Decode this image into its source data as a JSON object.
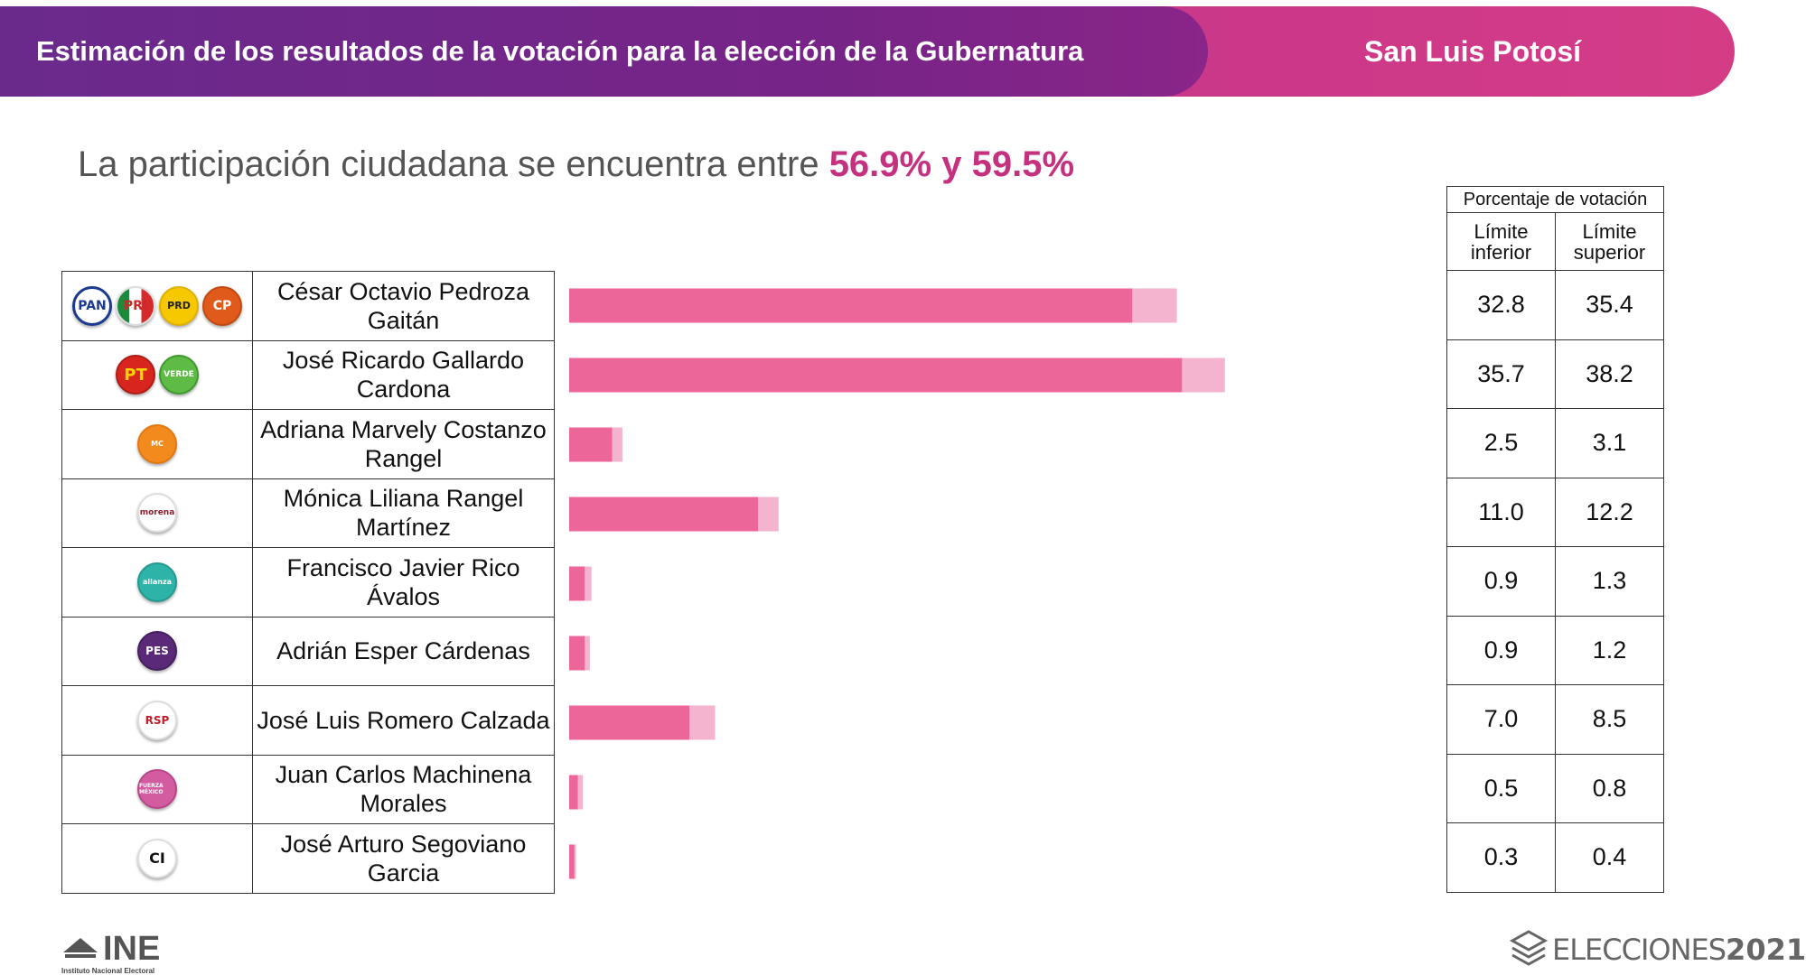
{
  "header": {
    "title": "Estimación de los resultados de la votación para la elección de la Gubernatura",
    "state": "San Luis Potosí"
  },
  "participation": {
    "text": "La participación ciudadana se encuentra entre ",
    "low": "56.9%",
    "conj": " y ",
    "high": "59.5%"
  },
  "table_header": {
    "title": "Porcentaje de votación",
    "lower": "Límite inferior",
    "upper": "Límite superior"
  },
  "candidates": [
    {
      "name": "César Octavio Pedroza Gaitán",
      "parties": [
        "PAN",
        "PRI",
        "PRD",
        "CP"
      ],
      "lower": "32.8",
      "upper": "35.4"
    },
    {
      "name": "José Ricardo Gallardo Cardona",
      "parties": [
        "PT",
        "VERDE"
      ],
      "lower": "35.7",
      "upper": "38.2"
    },
    {
      "name": "Adriana Marvely Costanzo Rangel",
      "parties": [
        "MC"
      ],
      "lower": "2.5",
      "upper": "3.1"
    },
    {
      "name": "Mónica Liliana Rangel Martínez",
      "parties": [
        "morena"
      ],
      "lower": "11.0",
      "upper": "12.2"
    },
    {
      "name": "Francisco Javier Rico Ávalos",
      "parties": [
        "alianza"
      ],
      "lower": "0.9",
      "upper": "1.3"
    },
    {
      "name": "Adrián Esper Cárdenas",
      "parties": [
        "PES"
      ],
      "lower": "0.9",
      "upper": "1.2"
    },
    {
      "name": "José Luis Romero Calzada",
      "parties": [
        "RSP"
      ],
      "lower": "7.0",
      "upper": "8.5"
    },
    {
      "name": "Juan Carlos Machinena Morales",
      "parties": [
        "FUERZA MÉXICO"
      ],
      "lower": "0.5",
      "upper": "0.8"
    },
    {
      "name": "José Arturo Segoviano Garcia",
      "parties": [
        "CI"
      ],
      "lower": "0.3",
      "upper": "0.4"
    }
  ],
  "chart_data": {
    "type": "bar",
    "orientation": "horizontal",
    "categories": [
      "César Octavio Pedroza Gaitán",
      "José Ricardo Gallardo Cardona",
      "Adriana Marvely Costanzo Rangel",
      "Mónica Liliana Rangel Martínez",
      "Francisco Javier Rico Ávalos",
      "Adrián Esper Cárdenas",
      "José Luis Romero Calzada",
      "Juan Carlos Machinena Morales",
      "José Arturo Segoviano Garcia"
    ],
    "series": [
      {
        "name": "Límite inferior",
        "values": [
          32.8,
          35.7,
          2.5,
          11.0,
          0.9,
          0.9,
          7.0,
          0.5,
          0.3
        ],
        "color": "#ec6699"
      },
      {
        "name": "Límite superior",
        "values": [
          35.4,
          38.2,
          3.1,
          12.2,
          1.3,
          1.2,
          8.5,
          0.8,
          0.4
        ],
        "color": "#f4b3cf"
      }
    ],
    "xlim": [
      0,
      38.2
    ],
    "grid": false,
    "title": "",
    "xlabel": "",
    "ylabel": ""
  },
  "footer": {
    "ine_logo": "INE",
    "ine_sub": "Instituto Nacional Electoral",
    "elecciones": "ELECCIONES",
    "year": "2021"
  },
  "colors": {
    "header_left": "#772487",
    "header_right": "#d43c86",
    "highlight": "#c4317f",
    "bar_lower": "#ec6699",
    "bar_upper": "#f4b3cf"
  }
}
